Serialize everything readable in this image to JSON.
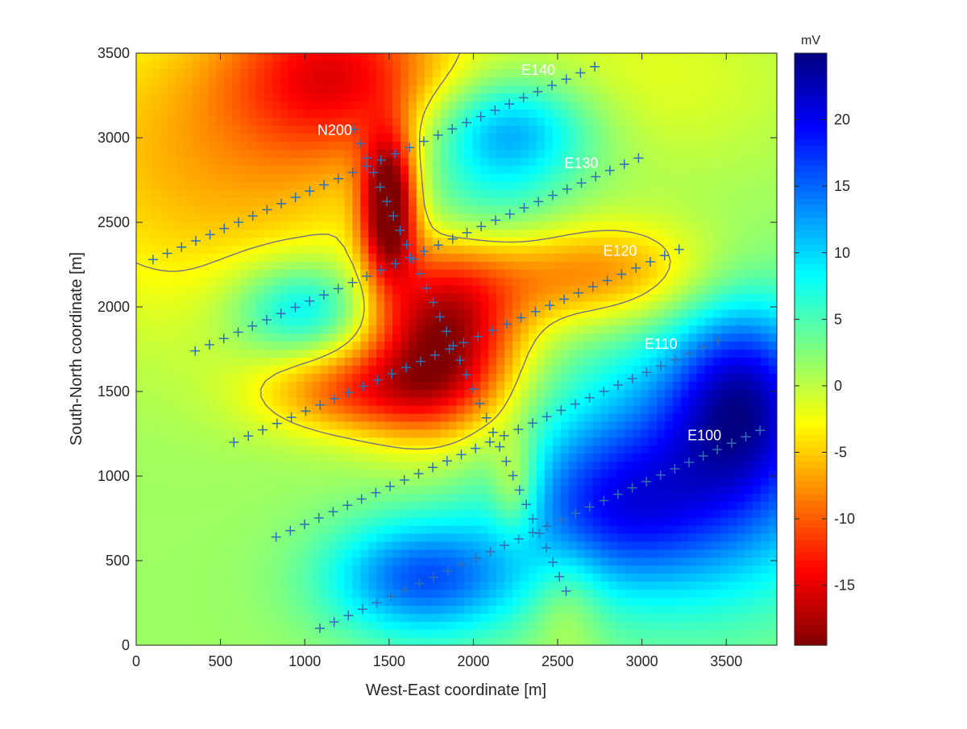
{
  "chart_data": {
    "type": "heatmap",
    "title": "",
    "xlabel": "West-East coordinate [m]",
    "ylabel": "South-North coordinate [m]",
    "xlim": [
      0,
      3800
    ],
    "ylim": [
      0,
      3500
    ],
    "xticks": [
      0,
      500,
      1000,
      1500,
      2000,
      2500,
      3000,
      3500
    ],
    "yticks": [
      0,
      500,
      1000,
      1500,
      2000,
      2500,
      3000,
      3500
    ],
    "colorbar": {
      "label": "mV",
      "min": -19.5,
      "max": 25,
      "ticks": [
        -15,
        -10,
        -5,
        0,
        5,
        10,
        15,
        20
      ],
      "colormap": "jet-reversed"
    },
    "grid": false,
    "profiles": [
      {
        "name": "N200",
        "start": [
          1290,
          3050
        ],
        "end": [
          2550,
          320
        ],
        "n": 33
      },
      {
        "name": "E140",
        "start": [
          100,
          2280
        ],
        "end": [
          2720,
          3420
        ],
        "n": 32
      },
      {
        "name": "E130",
        "start": [
          350,
          1740
        ],
        "end": [
          2980,
          2880
        ],
        "n": 32
      },
      {
        "name": "E120",
        "start": [
          580,
          1200
        ],
        "end": [
          3220,
          2340
        ],
        "n": 32
      },
      {
        "name": "E110",
        "start": [
          830,
          640
        ],
        "end": [
          3450,
          1800
        ],
        "n": 32
      },
      {
        "name": "E100",
        "start": [
          1090,
          100
        ],
        "end": [
          3700,
          1270
        ],
        "n": 32
      }
    ],
    "profile_labels": [
      {
        "text": "N200",
        "x": 1075,
        "y": 3045
      },
      {
        "text": "E140",
        "x": 2285,
        "y": 3400
      },
      {
        "text": "E130",
        "x": 2540,
        "y": 2850
      },
      {
        "text": "E120",
        "x": 2770,
        "y": 2330
      },
      {
        "text": "E110",
        "x": 3015,
        "y": 1780
      },
      {
        "text": "E100",
        "x": 3270,
        "y": 1240
      }
    ],
    "sources": [
      {
        "x": 1200,
        "y": 3400,
        "value": -12,
        "sx": 450,
        "sy": 350
      },
      {
        "x": 500,
        "y": 2900,
        "value": -8,
        "sx": 900,
        "sy": 700
      },
      {
        "x": 1500,
        "y": 2600,
        "value": -24,
        "sx": 110,
        "sy": 280
      },
      {
        "x": 1820,
        "y": 1800,
        "value": -20,
        "sx": 320,
        "sy": 380
      },
      {
        "x": 1300,
        "y": 1500,
        "value": -10,
        "sx": 400,
        "sy": 180
      },
      {
        "x": 2700,
        "y": 2200,
        "value": -10,
        "sx": 500,
        "sy": 220
      },
      {
        "x": 2250,
        "y": 950,
        "value": -7,
        "sx": 100,
        "sy": 220
      },
      {
        "x": 2550,
        "y": 250,
        "value": -4,
        "sx": 150,
        "sy": 250
      },
      {
        "x": 3050,
        "y": 3350,
        "value": -3,
        "sx": 700,
        "sy": 400
      },
      {
        "x": 2200,
        "y": 3050,
        "value": 12,
        "sx": 350,
        "sy": 220
      },
      {
        "x": 2000,
        "y": 2600,
        "value": 6,
        "sx": 400,
        "sy": 250
      },
      {
        "x": 1000,
        "y": 2000,
        "value": 10,
        "sx": 300,
        "sy": 200
      },
      {
        "x": 1700,
        "y": 400,
        "value": 14,
        "sx": 400,
        "sy": 250
      },
      {
        "x": 3300,
        "y": 1000,
        "value": 14,
        "sx": 700,
        "sy": 550
      },
      {
        "x": 3600,
        "y": 1500,
        "value": 14,
        "sx": 300,
        "sy": 400
      },
      {
        "x": 2800,
        "y": 800,
        "value": 8,
        "sx": 400,
        "sy": 300
      }
    ],
    "background_value": 1.5,
    "contour_level": -3
  }
}
